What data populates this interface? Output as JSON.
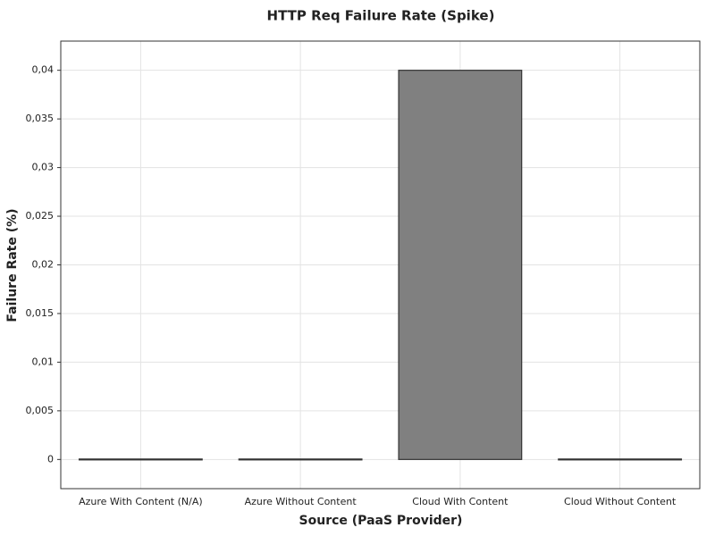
{
  "chart_data": {
    "type": "bar",
    "title": "HTTP Req Failure Rate (Spike)",
    "x_label": "Source (PaaS Provider)",
    "y_label": "Failure Rate (%)",
    "categories": [
      "Azure With Content (N/A)",
      "Azure Without Content",
      "Cloud With Content",
      "Cloud Without Content"
    ],
    "values": [
      0,
      0,
      0.04,
      0
    ],
    "color": "#808080",
    "ylim": [
      -0.003,
      0.043
    ],
    "yticks": [
      0,
      {
        "value": 0.005,
        "label": "0,005"
      },
      {
        "value": 0.01,
        "label": "0,01"
      },
      {
        "value": 0.015,
        "label": "0,015"
      },
      {
        "value": 0.02,
        "label": "0,02"
      },
      {
        "value": 0.025,
        "label": "0,025"
      },
      {
        "value": 0.03,
        "label": "0,03"
      },
      {
        "value": 0.035,
        "label": "0,035"
      },
      {
        "value": 0.04,
        "label": "0,04"
      }
    ],
    "grid": true
  }
}
